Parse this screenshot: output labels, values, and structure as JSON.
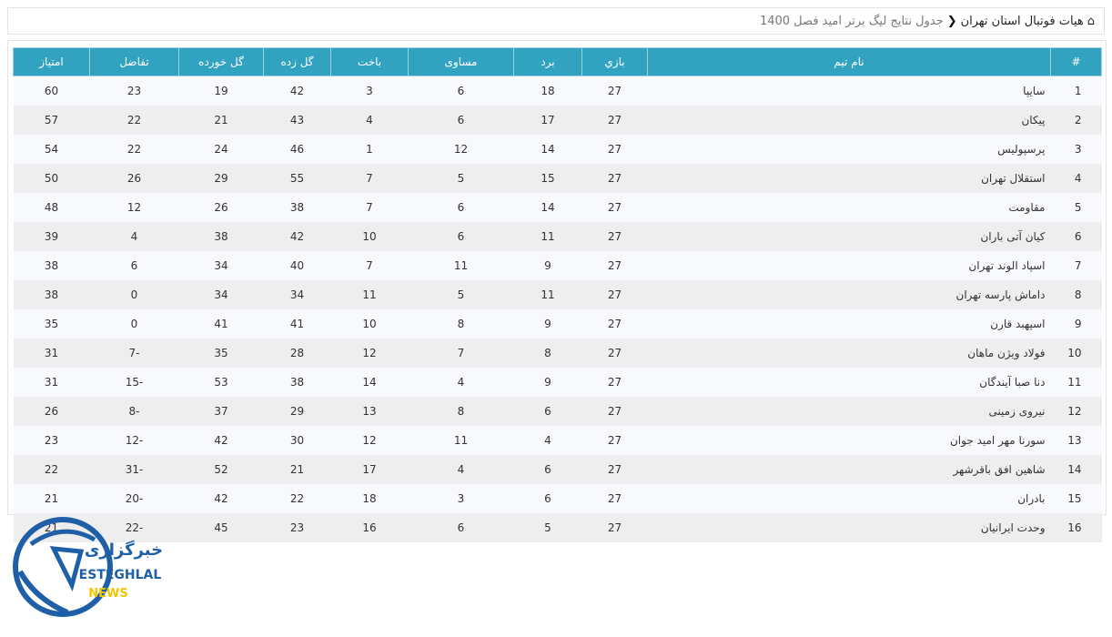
{
  "breadcrumb": {
    "home_icon": "home-icon",
    "parent": "هیات فوتبال استان تهران",
    "current": "جدول نتایج لیگ برتر امید فصل 1400"
  },
  "table": {
    "headers": [
      "#",
      "نام تیم",
      "بازي",
      "برد",
      "مساوی",
      "باخت",
      "گل زده",
      "گل خورده",
      "تفاضل",
      "امتیاز"
    ],
    "rows": [
      [
        "1",
        "سایپا",
        "27",
        "18",
        "6",
        "3",
        "42",
        "19",
        "23",
        "60"
      ],
      [
        "2",
        "پیکان",
        "27",
        "17",
        "6",
        "4",
        "43",
        "21",
        "22",
        "57"
      ],
      [
        "3",
        "پرسپولیس",
        "27",
        "14",
        "12",
        "1",
        "46",
        "24",
        "22",
        "54"
      ],
      [
        "4",
        "استقلال تهران",
        "27",
        "15",
        "5",
        "7",
        "55",
        "29",
        "26",
        "50"
      ],
      [
        "5",
        "مقاومت",
        "27",
        "14",
        "6",
        "7",
        "38",
        "26",
        "12",
        "48"
      ],
      [
        "6",
        "کیان آتی باران",
        "27",
        "11",
        "6",
        "10",
        "42",
        "38",
        "4",
        "39"
      ],
      [
        "7",
        "اسپاد الوند تهران",
        "27",
        "9",
        "11",
        "7",
        "40",
        "34",
        "6",
        "38"
      ],
      [
        "8",
        "داماش پارسه تهران",
        "27",
        "11",
        "5",
        "11",
        "34",
        "34",
        "0",
        "38"
      ],
      [
        "9",
        "اسپهبد قارن",
        "27",
        "9",
        "8",
        "10",
        "41",
        "41",
        "0",
        "35"
      ],
      [
        "10",
        "فولاد ویژن ماهان",
        "27",
        "8",
        "7",
        "12",
        "28",
        "35",
        "-7",
        "31"
      ],
      [
        "11",
        "دنا صبا آیندگان",
        "27",
        "9",
        "4",
        "14",
        "38",
        "53",
        "-15",
        "31"
      ],
      [
        "12",
        "نیروی زمینی",
        "27",
        "6",
        "8",
        "13",
        "29",
        "37",
        "-8",
        "26"
      ],
      [
        "13",
        "سورنا مهر امید جوان",
        "27",
        "4",
        "11",
        "12",
        "30",
        "42",
        "-12",
        "23"
      ],
      [
        "14",
        "شاهین افق باقرشهر",
        "27",
        "6",
        "4",
        "17",
        "21",
        "52",
        "-31",
        "22"
      ],
      [
        "15",
        "بادران",
        "27",
        "6",
        "3",
        "18",
        "22",
        "42",
        "-20",
        "21"
      ],
      [
        "16",
        "وحدت ایرانیان",
        "27",
        "5",
        "6",
        "16",
        "23",
        "45",
        "-22",
        "21"
      ]
    ]
  },
  "logo": {
    "arabic": "خبرگزاری",
    "name": "ESTEGHLAL",
    "sub": "NEWS"
  },
  "colors": {
    "header": "#31a2c0",
    "logo_blue": "#1f5fa8",
    "logo_yellow": "#f2c500"
  }
}
